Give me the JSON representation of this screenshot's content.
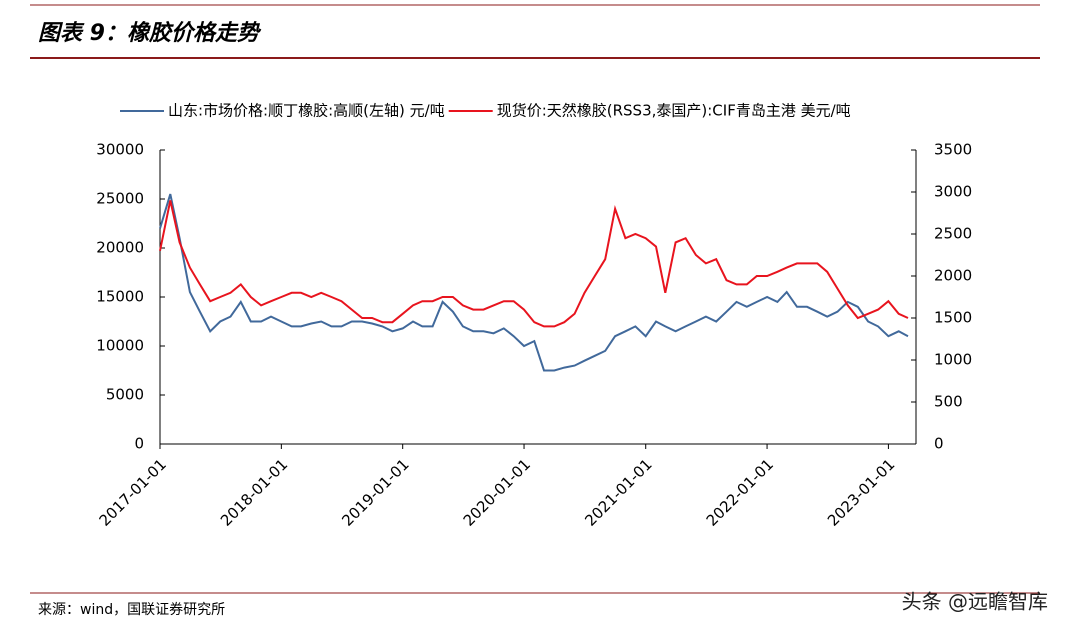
{
  "header": {
    "title": "图表 9：橡胶价格走势"
  },
  "chart_data": {
    "type": "line",
    "x": [
      "2017-01-01",
      "2017-02-01",
      "2017-03-01",
      "2017-04-01",
      "2017-05-01",
      "2017-06-01",
      "2017-07-01",
      "2017-08-01",
      "2017-09-01",
      "2017-10-01",
      "2017-11-01",
      "2017-12-01",
      "2018-01-01",
      "2018-02-01",
      "2018-03-01",
      "2018-04-01",
      "2018-05-01",
      "2018-06-01",
      "2018-07-01",
      "2018-08-01",
      "2018-09-01",
      "2018-10-01",
      "2018-11-01",
      "2018-12-01",
      "2019-01-01",
      "2019-02-01",
      "2019-03-01",
      "2019-04-01",
      "2019-05-01",
      "2019-06-01",
      "2019-07-01",
      "2019-08-01",
      "2019-09-01",
      "2019-10-01",
      "2019-11-01",
      "2019-12-01",
      "2020-01-01",
      "2020-02-01",
      "2020-03-01",
      "2020-04-01",
      "2020-05-01",
      "2020-06-01",
      "2020-07-01",
      "2020-08-01",
      "2020-09-01",
      "2020-10-01",
      "2020-11-01",
      "2020-12-01",
      "2021-01-01",
      "2021-02-01",
      "2021-03-01",
      "2021-04-01",
      "2021-05-01",
      "2021-06-01",
      "2021-07-01",
      "2021-08-01",
      "2021-09-01",
      "2021-10-01",
      "2021-11-01",
      "2021-12-01",
      "2022-01-01",
      "2022-02-01",
      "2022-03-01",
      "2022-04-01",
      "2022-05-01",
      "2022-06-01",
      "2022-07-01",
      "2022-08-01",
      "2022-09-01",
      "2022-10-01",
      "2022-11-01",
      "2022-12-01",
      "2023-01-01",
      "2023-02-01",
      "2023-03-01"
    ],
    "series": [
      {
        "name": "山东:市场价格:顺丁橡胶:高顺(左轴) 元/吨",
        "color": "#41699b",
        "axis": "y",
        "values": [
          22000,
          25500,
          21000,
          15500,
          13500,
          11500,
          12500,
          13000,
          14500,
          12500,
          12500,
          13000,
          12500,
          12000,
          12000,
          12300,
          12500,
          12000,
          12000,
          12500,
          12500,
          12300,
          12000,
          11500,
          11800,
          12500,
          12000,
          12000,
          14500,
          13500,
          12000,
          11500,
          11500,
          11300,
          11800,
          11000,
          10000,
          10500,
          7500,
          7500,
          7800,
          8000,
          8500,
          9000,
          9500,
          11000,
          11500,
          12000,
          11000,
          12500,
          12000,
          11500,
          12000,
          12500,
          13000,
          12500,
          13500,
          14500,
          14000,
          14500,
          15000,
          14500,
          15500,
          14000,
          14000,
          13500,
          13000,
          13500,
          14500,
          14000,
          12500,
          12000,
          11000,
          11500,
          11000
        ]
      },
      {
        "name": "现货价:天然橡胶(RSS3,泰国产):CIF青岛主港 美元/吨",
        "color": "#e8141e",
        "axis": "y2",
        "values": [
          2300,
          2900,
          2400,
          2100,
          1900,
          1700,
          1750,
          1800,
          1900,
          1750,
          1650,
          1700,
          1750,
          1800,
          1800,
          1750,
          1800,
          1750,
          1700,
          1600,
          1500,
          1500,
          1450,
          1450,
          1550,
          1650,
          1700,
          1700,
          1750,
          1750,
          1650,
          1600,
          1600,
          1650,
          1700,
          1700,
          1600,
          1450,
          1400,
          1400,
          1450,
          1550,
          1800,
          2000,
          2200,
          2800,
          2450,
          2500,
          2450,
          2350,
          1800,
          2400,
          2450,
          2250,
          2150,
          2200,
          1950,
          1900,
          1900,
          2000,
          2000,
          2050,
          2100,
          2150,
          2150,
          2150,
          2050,
          1850,
          1650,
          1500,
          1550,
          1600,
          1700,
          1550,
          1500
        ]
      }
    ],
    "xlim": [
      "2017-01-01",
      "2023-03-25"
    ],
    "xticks": [
      "2017-01-01",
      "2018-01-01",
      "2019-01-01",
      "2020-01-01",
      "2021-01-01",
      "2022-01-01",
      "2023-01-01"
    ],
    "ylim": [
      0,
      30000
    ],
    "yticks": [
      0,
      5000,
      10000,
      15000,
      20000,
      25000,
      30000
    ],
    "y2lim": [
      0,
      3500
    ],
    "y2ticks": [
      0,
      500,
      1000,
      1500,
      2000,
      2500,
      3000,
      3500
    ]
  },
  "footer": {
    "source": "来源：wind，国联证券研究所",
    "watermark": "头条 @远瞻智库"
  }
}
